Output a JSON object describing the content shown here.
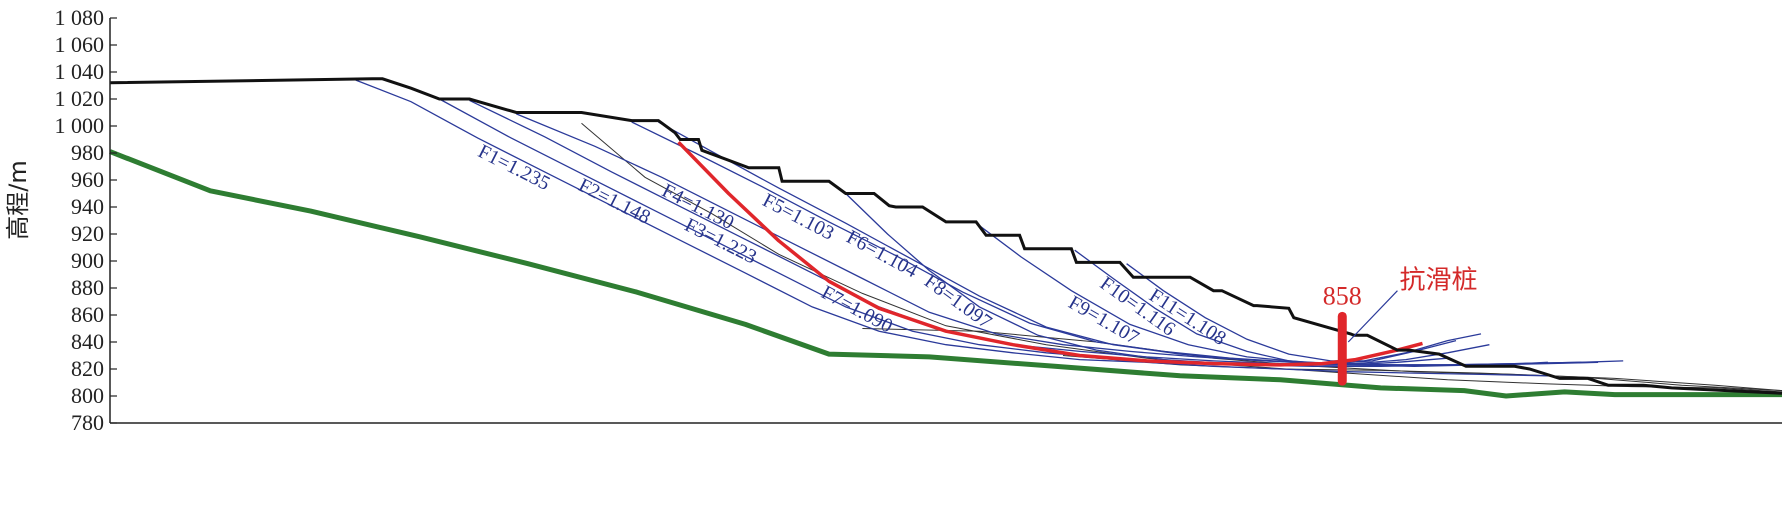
{
  "chart_data": {
    "type": "line",
    "title": "",
    "xlabel": "",
    "ylabel": "高程/m",
    "ylim": [
      780,
      1080
    ],
    "xlim": [
      0,
      1000
    ],
    "y_ticks": [
      1080,
      1060,
      1040,
      1020,
      1000,
      980,
      960,
      940,
      920,
      900,
      880,
      860,
      840,
      820,
      800,
      780
    ],
    "y_tick_labels": [
      "1 080",
      "1 060",
      "1 040",
      "1 020",
      "1 000",
      "980",
      "960",
      "940",
      "920",
      "900",
      "880",
      "860",
      "840",
      "820",
      "800",
      "780"
    ],
    "grid": false,
    "colors": {
      "ground": "#111111",
      "bedrock": "#2e7d32",
      "slip": "#2b3a9a",
      "critical": "#e0262b",
      "pile": "#e0262b",
      "thin": "#333333"
    },
    "ground_surface": {
      "x": [
        0,
        157,
        163,
        180,
        197,
        215,
        243,
        282,
        312,
        328,
        338,
        341,
        352,
        354,
        380,
        382,
        400,
        402,
        430,
        440,
        457,
        466,
        470,
        486,
        500,
        518,
        524,
        544,
        547,
        575,
        578,
        604,
        612,
        646,
        660,
        665,
        684,
        686,
        705,
        708,
        742,
        744,
        752,
        770,
        777,
        795,
        811,
        840,
        849,
        867,
        884,
        896,
        917,
        934,
        950,
        1000
      ],
      "y": [
        1032,
        1035,
        1035,
        1028,
        1020,
        1020,
        1010,
        1010,
        1004,
        1004,
        995,
        990,
        990,
        982,
        970,
        969,
        969,
        959,
        959,
        950,
        950,
        941,
        940,
        940,
        929,
        929,
        919,
        919,
        909,
        909,
        899,
        899,
        888,
        888,
        878,
        878,
        867,
        867,
        865,
        858,
        846,
        845,
        845,
        834,
        834,
        831,
        822,
        822,
        820,
        813,
        813,
        808,
        808,
        806,
        805,
        802
      ]
    },
    "bedrock_surface": {
      "x": [
        0,
        60,
        120,
        185,
        250,
        315,
        380,
        430,
        490,
        565,
        640,
        700,
        760,
        810,
        835,
        870,
        900,
        950,
        1000
      ],
      "y": [
        981,
        952,
        937,
        918,
        898,
        877,
        853,
        831,
        829,
        822,
        815,
        812,
        806,
        804,
        800,
        803,
        801,
        801,
        801
      ]
    },
    "critical_surface": {
      "label": "F7=1.090",
      "x": [
        340,
        370,
        400,
        430,
        460,
        500,
        540,
        580,
        620,
        660,
        700,
        725,
        745,
        770,
        785
      ],
      "y": [
        988,
        950,
        915,
        885,
        865,
        848,
        838,
        830,
        826,
        824,
        823,
        824,
        827,
        834,
        839
      ]
    },
    "series": [
      {
        "name": "F1=1.235",
        "x": [
          147,
          180,
          220,
          260,
          300,
          340,
          380,
          420,
          460,
          500,
          540,
          580,
          620,
          660,
          700,
          740,
          780,
          820,
          860
        ],
        "y": [
          1034,
          1018,
          991,
          966,
          941,
          916,
          891,
          866,
          848,
          838,
          832,
          827,
          825,
          822,
          820,
          818,
          817,
          816,
          815
        ]
      },
      {
        "name": "F2=1.148",
        "x": [
          197,
          240,
          280,
          320,
          360,
          400,
          440,
          480,
          520,
          560,
          600,
          640,
          680,
          720,
          760,
          800,
          840,
          880,
          905
        ],
        "y": [
          1020,
          991,
          966,
          941,
          916,
          891,
          866,
          848,
          838,
          832,
          828,
          825,
          823,
          822,
          822,
          823,
          824,
          825,
          826
        ]
      },
      {
        "name": "F3=1.223",
        "x": [
          215,
          260,
          300,
          340,
          380,
          420,
          460,
          500,
          540,
          580,
          620,
          660,
          700,
          740,
          780,
          820,
          860,
          890
        ],
        "y": [
          1019,
          992,
          966,
          941,
          916,
          891,
          866,
          848,
          838,
          833,
          829,
          826,
          824,
          823,
          822,
          823,
          824,
          825
        ]
      },
      {
        "name": "F4=1.130",
        "x": [
          243,
          290,
          330,
          370,
          410,
          450,
          490,
          530,
          570,
          610,
          650,
          690,
          730,
          770,
          810,
          850,
          885
        ],
        "y": [
          1009,
          985,
          962,
          937,
          912,
          887,
          862,
          846,
          838,
          833,
          829,
          826,
          824,
          823,
          823,
          824,
          825
        ]
      },
      {
        "name": "F5=1.103",
        "x": [
          312,
          350,
          390,
          430,
          470,
          510,
          550,
          590,
          630,
          670,
          710,
          750,
          790,
          830,
          860
        ],
        "y": [
          1003,
          980,
          955,
          929,
          904,
          877,
          854,
          840,
          833,
          828,
          825,
          823,
          823,
          823,
          825
        ]
      },
      {
        "name": "F6=1.104",
        "x": [
          328,
          360,
          400,
          440,
          480,
          520,
          560,
          600,
          640,
          680,
          720,
          760,
          800,
          840,
          880
        ],
        "y": [
          1003,
          981,
          954,
          928,
          901,
          874,
          851,
          838,
          831,
          827,
          824,
          823,
          823,
          824,
          825
        ]
      },
      {
        "name": "F8=1.097",
        "x": [
          440,
          465,
          490,
          520,
          555,
          590,
          630,
          670,
          710,
          740,
          770,
          800
        ],
        "y": [
          950,
          920,
          893,
          866,
          845,
          834,
          827,
          824,
          823,
          823,
          825,
          828
        ]
      },
      {
        "name": "F9=1.107",
        "x": [
          518,
          545,
          575,
          610,
          645,
          680,
          715,
          745,
          775,
          800,
          825
        ],
        "y": [
          928,
          903,
          878,
          853,
          838,
          829,
          825,
          824,
          827,
          832,
          838
        ]
      },
      {
        "name": "F10=1.116",
        "x": [
          577,
          600,
          625,
          650,
          680,
          705,
          730,
          755,
          780,
          805
        ],
        "y": [
          908,
          887,
          865,
          846,
          833,
          826,
          824,
          826,
          833,
          841
        ]
      },
      {
        "name": "F11=1.108",
        "x": [
          608,
          630,
          655,
          680,
          705,
          730,
          750,
          775,
          800,
          820
        ],
        "y": [
          898,
          878,
          858,
          842,
          831,
          826,
          826,
          832,
          841,
          846
        ]
      }
    ],
    "thin_lines": [
      {
        "x": [
          282,
          320,
          360,
          400,
          450,
          500,
          560,
          620,
          680,
          740,
          800,
          860,
          910,
          960,
          1000
        ],
        "y": [
          1002,
          962,
          935,
          905,
          876,
          852,
          838,
          828,
          822,
          817,
          812,
          809,
          807,
          806,
          803
        ]
      },
      {
        "x": [
          450,
          520,
          590,
          660,
          720,
          780,
          840,
          900,
          960,
          1000
        ],
        "y": [
          850,
          848,
          840,
          828,
          822,
          818,
          816,
          813,
          808,
          804
        ]
      },
      {
        "x": [
          570,
          640,
          700,
          760,
          820,
          880,
          940,
          1000
        ],
        "y": [
          830,
          823,
          820,
          819,
          817,
          814,
          808,
          804
        ]
      }
    ],
    "pile": {
      "x": 737,
      "y_top": 859,
      "y_bottom": 811,
      "label": "858",
      "annotation": "抗滑桩",
      "leader_to": {
        "x": 770,
        "y": 878
      }
    }
  }
}
